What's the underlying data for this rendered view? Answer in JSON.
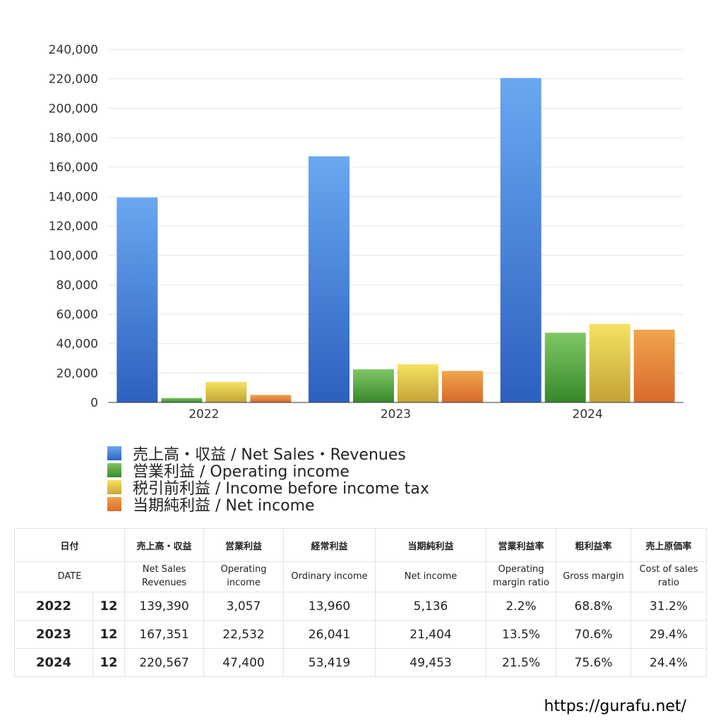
{
  "chart_data": {
    "type": "bar",
    "categories": [
      "2022",
      "2023",
      "2024"
    ],
    "series": [
      {
        "name": "売上高・収益 / Net Sales・Revenues",
        "values": [
          139390,
          167351,
          220567
        ],
        "color": "#3f7fd8"
      },
      {
        "name": "営業利益 / Operating income",
        "values": [
          3057,
          22532,
          47400
        ],
        "color": "#4e9e3c"
      },
      {
        "name": "税引前利益 / Income before income tax",
        "values": [
          13960,
          26041,
          53419
        ],
        "color": "#e6c43e"
      },
      {
        "name": "当期純利益 / Net income",
        "values": [
          5136,
          21404,
          49453
        ],
        "color": "#e07f34"
      }
    ],
    "ylim": [
      0,
      240000
    ],
    "yticks": [
      "0",
      "20,000",
      "40,000",
      "60,000",
      "80,000",
      "100,000",
      "120,000",
      "140,000",
      "160,000",
      "180,000",
      "200,000",
      "220,000",
      "240,000"
    ],
    "grid": true,
    "legend_position": "bottom-left",
    "title": "",
    "xlabel": "",
    "ylabel": ""
  },
  "table": {
    "headers_ja": [
      "日付",
      "売上高・収益",
      "営業利益",
      "経常利益",
      "当期純利益",
      "営業利益率",
      "粗利益率",
      "売上原価率"
    ],
    "headers_en": [
      "DATE",
      "Net Sales\nRevenues",
      "Operating\nincome",
      "Ordinary income",
      "Net income",
      "Operating\nmargin ratio",
      "Gross margin",
      "Cost of sales\nratio"
    ],
    "rows": [
      {
        "year": "2022",
        "month": "12",
        "cells": [
          "139,390",
          "3,057",
          "13,960",
          "5,136",
          "2.2%",
          "68.8%",
          "31.2%"
        ]
      },
      {
        "year": "2023",
        "month": "12",
        "cells": [
          "167,351",
          "22,532",
          "26,041",
          "21,404",
          "13.5%",
          "70.6%",
          "29.4%"
        ]
      },
      {
        "year": "2024",
        "month": "12",
        "cells": [
          "220,567",
          "47,400",
          "53,419",
          "49,453",
          "21.5%",
          "75.6%",
          "24.4%"
        ]
      }
    ]
  },
  "footer": {
    "url": "https://gurafu.net/"
  }
}
